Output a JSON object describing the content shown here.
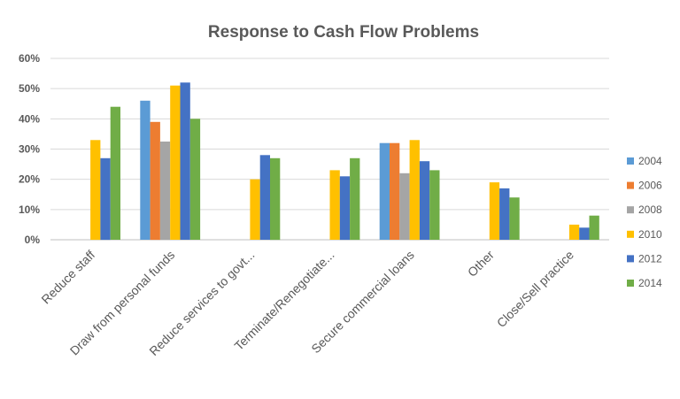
{
  "chart_data": {
    "type": "bar",
    "title": "Response to Cash Flow Problems",
    "xlabel": "",
    "ylabel": "",
    "ylim": [
      0,
      0.6
    ],
    "yticks": [
      0,
      0.1,
      0.2,
      0.3,
      0.4,
      0.5,
      0.6
    ],
    "ytick_labels": [
      "0%",
      "10%",
      "20%",
      "30%",
      "40%",
      "50%",
      "60%"
    ],
    "grid": true,
    "legend_position": "right",
    "categories": [
      "Reduce staff",
      "Draw from personal funds",
      "Reduce services to govt...",
      "Terminate/Renegotiate...",
      "Secure commercial loans",
      "Other",
      "Close/Sell practice"
    ],
    "series": [
      {
        "name": "2004",
        "color": "#5B9BD5",
        "values": [
          null,
          0.46,
          null,
          null,
          0.32,
          null,
          null
        ]
      },
      {
        "name": "2006",
        "color": "#ED7D31",
        "values": [
          null,
          0.39,
          null,
          null,
          0.32,
          null,
          null
        ]
      },
      {
        "name": "2008",
        "color": "#A5A5A5",
        "values": [
          null,
          0.325,
          null,
          null,
          0.22,
          null,
          null
        ]
      },
      {
        "name": "2010",
        "color": "#FFC000",
        "values": [
          0.33,
          0.51,
          0.2,
          0.23,
          0.33,
          0.19,
          0.05
        ]
      },
      {
        "name": "2012",
        "color": "#4472C4",
        "values": [
          0.27,
          0.52,
          0.28,
          0.21,
          0.26,
          0.17,
          0.04
        ]
      },
      {
        "name": "2014",
        "color": "#70AD47",
        "values": [
          0.44,
          0.4,
          0.27,
          0.27,
          0.23,
          0.14,
          0.08
        ]
      }
    ]
  },
  "colors": {
    "gridline": "#D9D9D9",
    "axis": "#BFBFBF",
    "text": "#595959"
  }
}
